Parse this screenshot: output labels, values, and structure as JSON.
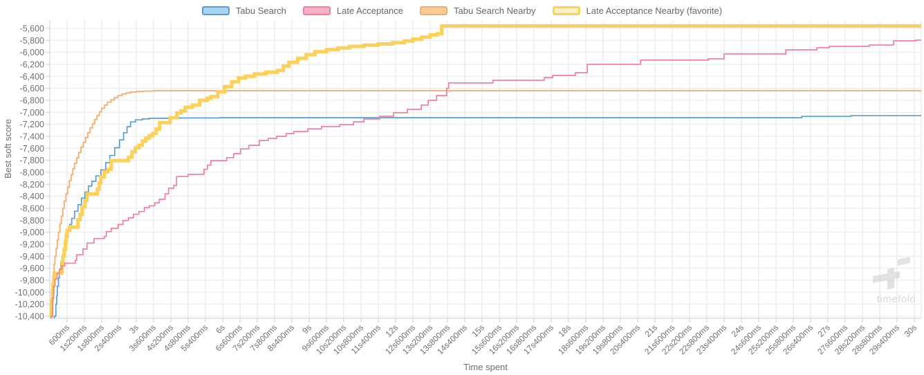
{
  "chart_data": {
    "type": "line",
    "line_style": "step-after",
    "title": "",
    "xlabel": "Time spent",
    "ylabel": "Best soft score",
    "xlim_seconds": [
      0,
      30.24
    ],
    "ylim": [
      -10435,
      -5495
    ],
    "grid": true,
    "legend_position": "top",
    "watermark": "timefold",
    "x_ticks": [
      {
        "t": 0.6,
        "label": "600ms"
      },
      {
        "t": 1.2,
        "label": "1s200ms"
      },
      {
        "t": 1.8,
        "label": "1s800ms"
      },
      {
        "t": 2.4,
        "label": "2s400ms"
      },
      {
        "t": 3,
        "label": "3s"
      },
      {
        "t": 3.6,
        "label": "3s600ms"
      },
      {
        "t": 4.2,
        "label": "4s200ms"
      },
      {
        "t": 4.8,
        "label": "4s800ms"
      },
      {
        "t": 5.4,
        "label": "5s400ms"
      },
      {
        "t": 6,
        "label": "6s"
      },
      {
        "t": 6.6,
        "label": "6s600ms"
      },
      {
        "t": 7.2,
        "label": "7s200ms"
      },
      {
        "t": 7.8,
        "label": "7s800ms"
      },
      {
        "t": 8.4,
        "label": "8s400ms"
      },
      {
        "t": 9,
        "label": "9s"
      },
      {
        "t": 9.6,
        "label": "9s600ms"
      },
      {
        "t": 10.2,
        "label": "10s200ms"
      },
      {
        "t": 10.8,
        "label": "10s800ms"
      },
      {
        "t": 11.4,
        "label": "11s400ms"
      },
      {
        "t": 12,
        "label": "12s"
      },
      {
        "t": 12.6,
        "label": "12s600ms"
      },
      {
        "t": 13.2,
        "label": "13s200ms"
      },
      {
        "t": 13.8,
        "label": "13s800ms"
      },
      {
        "t": 14.4,
        "label": "14s400ms"
      },
      {
        "t": 15,
        "label": "15s"
      },
      {
        "t": 15.6,
        "label": "15s600ms"
      },
      {
        "t": 16.2,
        "label": "16s200ms"
      },
      {
        "t": 16.8,
        "label": "16s800ms"
      },
      {
        "t": 17.4,
        "label": "17s400ms"
      },
      {
        "t": 18,
        "label": "18s"
      },
      {
        "t": 18.6,
        "label": "18s600ms"
      },
      {
        "t": 19.2,
        "label": "19s200ms"
      },
      {
        "t": 19.8,
        "label": "19s800ms"
      },
      {
        "t": 20.4,
        "label": "20s400ms"
      },
      {
        "t": 21,
        "label": "21s"
      },
      {
        "t": 21.6,
        "label": "21s600ms"
      },
      {
        "t": 22.2,
        "label": "22s200ms"
      },
      {
        "t": 22.8,
        "label": "22s800ms"
      },
      {
        "t": 23.4,
        "label": "23s400ms"
      },
      {
        "t": 24,
        "label": "24s"
      },
      {
        "t": 24.6,
        "label": "24s600ms"
      },
      {
        "t": 25.2,
        "label": "25s200ms"
      },
      {
        "t": 25.8,
        "label": "25s800ms"
      },
      {
        "t": 26.4,
        "label": "26s400ms"
      },
      {
        "t": 27,
        "label": "27s"
      },
      {
        "t": 27.6,
        "label": "27s600ms"
      },
      {
        "t": 28.2,
        "label": "28s200ms"
      },
      {
        "t": 28.8,
        "label": "28s800ms"
      },
      {
        "t": 29.4,
        "label": "29s400ms"
      },
      {
        "t": 30,
        "label": "30s"
      }
    ],
    "y_ticks": [
      {
        "v": -5600,
        "label": "-5,600"
      },
      {
        "v": -5800,
        "label": "-5,800"
      },
      {
        "v": -6000,
        "label": "-6,000"
      },
      {
        "v": -6200,
        "label": "-6,200"
      },
      {
        "v": -6400,
        "label": "-6,400"
      },
      {
        "v": -6600,
        "label": "-6,600"
      },
      {
        "v": -6800,
        "label": "-6,800"
      },
      {
        "v": -7000,
        "label": "-7,000"
      },
      {
        "v": -7200,
        "label": "-7,200"
      },
      {
        "v": -7400,
        "label": "-7,400"
      },
      {
        "v": -7600,
        "label": "-7,600"
      },
      {
        "v": -7800,
        "label": "-7,800"
      },
      {
        "v": -8000,
        "label": "-8,000"
      },
      {
        "v": -8200,
        "label": "-8,200"
      },
      {
        "v": -8400,
        "label": "-8,400"
      },
      {
        "v": -8600,
        "label": "-8,600"
      },
      {
        "v": -8800,
        "label": "-8,800"
      },
      {
        "v": -9000,
        "label": "-9,000"
      },
      {
        "v": -9200,
        "label": "-9,200"
      },
      {
        "v": -9400,
        "label": "-9,400"
      },
      {
        "v": -9600,
        "label": "-9,600"
      },
      {
        "v": -9800,
        "label": "-9,800"
      },
      {
        "v": -10000,
        "label": "-10,000"
      },
      {
        "v": -10200,
        "label": "-10,200"
      },
      {
        "v": -10400,
        "label": "-10,400"
      }
    ],
    "series": [
      {
        "name": "Tabu Search",
        "slug": "tabu-search",
        "color": "#559fd6",
        "legend_fill": "#a9d4f0",
        "width": 1.7,
        "favorite": false,
        "points": [
          [
            0.16,
            -10400
          ],
          [
            0.21,
            -10200
          ],
          [
            0.24,
            -10060
          ],
          [
            0.26,
            -9900
          ],
          [
            0.3,
            -9760
          ],
          [
            0.33,
            -9650
          ],
          [
            0.38,
            -9500
          ],
          [
            0.42,
            -9400
          ],
          [
            0.47,
            -9280
          ],
          [
            0.52,
            -9180
          ],
          [
            0.57,
            -9080
          ],
          [
            0.64,
            -8960
          ],
          [
            0.69,
            -8870
          ],
          [
            0.76,
            -8770
          ],
          [
            0.86,
            -8650
          ],
          [
            0.98,
            -8540
          ],
          [
            1.1,
            -8430
          ],
          [
            1.22,
            -8330
          ],
          [
            1.34,
            -8230
          ],
          [
            1.46,
            -8150
          ],
          [
            1.6,
            -8060
          ],
          [
            1.77,
            -7960
          ],
          [
            1.94,
            -7840
          ],
          [
            2.08,
            -7720
          ],
          [
            2.25,
            -7590
          ],
          [
            2.42,
            -7460
          ],
          [
            2.56,
            -7340
          ],
          [
            2.68,
            -7240
          ],
          [
            2.8,
            -7160
          ],
          [
            2.97,
            -7125
          ],
          [
            3.21,
            -7110
          ],
          [
            3.45,
            -7100
          ],
          [
            4.3,
            -7094
          ],
          [
            5.9,
            -7090
          ],
          [
            26.1,
            -7068
          ],
          [
            27.8,
            -7056
          ]
        ]
      },
      {
        "name": "Late Acceptance",
        "slug": "late-acceptance",
        "color": "#f2809b",
        "legend_fill": "#f8b1c6",
        "width": 1.7,
        "favorite": false,
        "points": [
          [
            0.05,
            -10400
          ],
          [
            0.09,
            -10100
          ],
          [
            0.13,
            -9900
          ],
          [
            0.18,
            -9780
          ],
          [
            0.25,
            -9690
          ],
          [
            0.33,
            -9620
          ],
          [
            0.42,
            -9560
          ],
          [
            0.52,
            -9515
          ],
          [
            0.88,
            -9470
          ],
          [
            0.93,
            -9375
          ],
          [
            1.15,
            -9280
          ],
          [
            1.29,
            -9180
          ],
          [
            1.53,
            -9105
          ],
          [
            1.89,
            -9070
          ],
          [
            1.96,
            -8990
          ],
          [
            2.13,
            -8935
          ],
          [
            2.37,
            -8870
          ],
          [
            2.54,
            -8805
          ],
          [
            2.73,
            -8760
          ],
          [
            2.9,
            -8700
          ],
          [
            3.09,
            -8655
          ],
          [
            3.28,
            -8590
          ],
          [
            3.45,
            -8560
          ],
          [
            3.64,
            -8510
          ],
          [
            3.8,
            -8450
          ],
          [
            4.0,
            -8360
          ],
          [
            4.12,
            -8265
          ],
          [
            4.3,
            -8220
          ],
          [
            4.4,
            -8070
          ],
          [
            4.8,
            -8035
          ],
          [
            5.35,
            -7950
          ],
          [
            5.47,
            -7880
          ],
          [
            5.59,
            -7805
          ],
          [
            6.14,
            -7755
          ],
          [
            6.38,
            -7690
          ],
          [
            6.62,
            -7610
          ],
          [
            6.91,
            -7550
          ],
          [
            7.27,
            -7470
          ],
          [
            7.58,
            -7435
          ],
          [
            7.87,
            -7400
          ],
          [
            8.2,
            -7355
          ],
          [
            8.47,
            -7320
          ],
          [
            8.95,
            -7275
          ],
          [
            9.43,
            -7238
          ],
          [
            10.06,
            -7204
          ],
          [
            10.54,
            -7158
          ],
          [
            10.9,
            -7112
          ],
          [
            11.45,
            -7065
          ],
          [
            11.93,
            -7008
          ],
          [
            12.41,
            -6950
          ],
          [
            12.89,
            -6880
          ],
          [
            13.13,
            -6800
          ],
          [
            13.42,
            -6720
          ],
          [
            13.77,
            -6600
          ],
          [
            13.84,
            -6510
          ],
          [
            15.38,
            -6465
          ],
          [
            17.16,
            -6420
          ],
          [
            17.45,
            -6385
          ],
          [
            18.24,
            -6340
          ],
          [
            18.65,
            -6200
          ],
          [
            20.5,
            -6130
          ],
          [
            22.85,
            -6108
          ],
          [
            23.4,
            -6027
          ],
          [
            25.54,
            -5958
          ],
          [
            26.62,
            -5923
          ],
          [
            27.05,
            -5900
          ],
          [
            28.44,
            -5877
          ],
          [
            29.28,
            -5808
          ],
          [
            30.05,
            -5796
          ]
        ]
      },
      {
        "name": "Tabu Search Nearby",
        "slug": "tabu-search-nearby",
        "color": "#f6ac6d",
        "legend_fill": "#fbcb97",
        "width": 1.8,
        "favorite": false,
        "points": [
          [
            0.05,
            -10400
          ],
          [
            0.07,
            -10050
          ],
          [
            0.09,
            -9850
          ],
          [
            0.12,
            -9680
          ],
          [
            0.15,
            -9530
          ],
          [
            0.18,
            -9400
          ],
          [
            0.22,
            -9270
          ],
          [
            0.26,
            -9130
          ],
          [
            0.3,
            -9000
          ],
          [
            0.35,
            -8860
          ],
          [
            0.4,
            -8730
          ],
          [
            0.45,
            -8600
          ],
          [
            0.5,
            -8480
          ],
          [
            0.56,
            -8360
          ],
          [
            0.62,
            -8250
          ],
          [
            0.68,
            -8140
          ],
          [
            0.74,
            -8040
          ],
          [
            0.8,
            -7940
          ],
          [
            0.86,
            -7850
          ],
          [
            0.93,
            -7760
          ],
          [
            1.0,
            -7670
          ],
          [
            1.08,
            -7580
          ],
          [
            1.16,
            -7500
          ],
          [
            1.24,
            -7420
          ],
          [
            1.32,
            -7340
          ],
          [
            1.4,
            -7260
          ],
          [
            1.48,
            -7190
          ],
          [
            1.56,
            -7120
          ],
          [
            1.64,
            -7050
          ],
          [
            1.72,
            -6990
          ],
          [
            1.8,
            -6930
          ],
          [
            1.9,
            -6880
          ],
          [
            2.0,
            -6830
          ],
          [
            2.12,
            -6790
          ],
          [
            2.24,
            -6755
          ],
          [
            2.36,
            -6720
          ],
          [
            2.5,
            -6695
          ],
          [
            2.65,
            -6675
          ],
          [
            2.8,
            -6662
          ],
          [
            3.0,
            -6652
          ],
          [
            3.25,
            -6645
          ],
          [
            3.6,
            -6641
          ]
        ]
      },
      {
        "name": "Late Acceptance Nearby (favorite)",
        "slug": "late-acceptance-nearby",
        "color": "#fbd159",
        "legend_fill": "#fdf0c0",
        "width": 5,
        "favorite": true,
        "points": [
          [
            0.05,
            -10400
          ],
          [
            0.07,
            -10150
          ],
          [
            0.09,
            -9990
          ],
          [
            0.11,
            -9870
          ],
          [
            0.14,
            -9760
          ],
          [
            0.16,
            -9685
          ],
          [
            0.4,
            -9660
          ],
          [
            0.43,
            -9500
          ],
          [
            0.46,
            -9400
          ],
          [
            0.5,
            -9280
          ],
          [
            0.54,
            -9160
          ],
          [
            0.57,
            -9050
          ],
          [
            0.6,
            -8970
          ],
          [
            0.69,
            -8915
          ],
          [
            0.98,
            -8790
          ],
          [
            1.05,
            -8700
          ],
          [
            1.12,
            -8580
          ],
          [
            1.22,
            -8470
          ],
          [
            1.29,
            -8360
          ],
          [
            1.65,
            -8280
          ],
          [
            1.71,
            -8180
          ],
          [
            1.77,
            -8080
          ],
          [
            1.89,
            -7990
          ],
          [
            2.01,
            -7950
          ],
          [
            2.13,
            -7805
          ],
          [
            2.73,
            -7750
          ],
          [
            2.85,
            -7660
          ],
          [
            2.97,
            -7590
          ],
          [
            3.09,
            -7550
          ],
          [
            3.21,
            -7480
          ],
          [
            3.33,
            -7430
          ],
          [
            3.45,
            -7390
          ],
          [
            3.57,
            -7350
          ],
          [
            3.69,
            -7280
          ],
          [
            3.81,
            -7170
          ],
          [
            4.17,
            -7090
          ],
          [
            4.41,
            -7010
          ],
          [
            4.55,
            -6975
          ],
          [
            4.7,
            -6915
          ],
          [
            4.95,
            -6880
          ],
          [
            5.2,
            -6800
          ],
          [
            5.47,
            -6765
          ],
          [
            5.59,
            -6740
          ],
          [
            5.83,
            -6660
          ],
          [
            6.07,
            -6570
          ],
          [
            6.31,
            -6490
          ],
          [
            6.55,
            -6430
          ],
          [
            6.79,
            -6400
          ],
          [
            7.1,
            -6360
          ],
          [
            7.5,
            -6330
          ],
          [
            7.9,
            -6300
          ],
          [
            8.1,
            -6230
          ],
          [
            8.3,
            -6165
          ],
          [
            8.6,
            -6100
          ],
          [
            8.9,
            -6040
          ],
          [
            9.2,
            -5990
          ],
          [
            9.6,
            -5955
          ],
          [
            10.0,
            -5925
          ],
          [
            10.4,
            -5900
          ],
          [
            10.9,
            -5880
          ],
          [
            11.4,
            -5860
          ],
          [
            11.9,
            -5840
          ],
          [
            12.3,
            -5810
          ],
          [
            12.6,
            -5780
          ],
          [
            12.9,
            -5745
          ],
          [
            13.2,
            -5710
          ],
          [
            13.45,
            -5690
          ],
          [
            13.6,
            -5560
          ]
        ]
      }
    ],
    "colors": {
      "grid_horizontal": "#e9e9e9",
      "grid_vertical": "#e3e3e3",
      "axis": "#cbcbcb",
      "tick_text": "#707070",
      "legend_text": "#666666",
      "watermark_gray": "#cccccc"
    }
  }
}
